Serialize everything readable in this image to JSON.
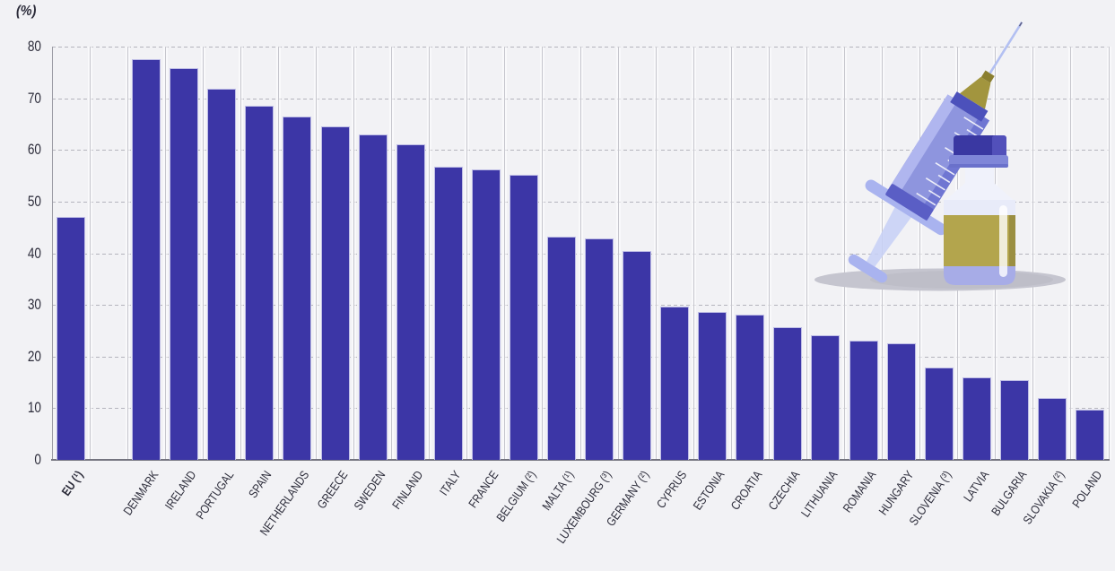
{
  "chart_data": {
    "type": "bar",
    "title": "",
    "unit_label": "(%)",
    "xlabel": "",
    "ylabel": "(%)",
    "ylim": [
      0,
      80
    ],
    "y_ticks": [
      0,
      10,
      20,
      30,
      40,
      50,
      60,
      70,
      80
    ],
    "grid": true,
    "legend_position": "none",
    "bar_color": "#3c36a6",
    "bar_border_color": "#bfbee6",
    "categories": [
      "EU (¹)",
      "DENMARK",
      "IRELAND",
      "PORTUGAL",
      "SPAIN",
      "NETHERLANDS",
      "GREECE",
      "SWEDEN",
      "FINLAND",
      "ITALY",
      "FRANCE",
      "BELGIUM (²)",
      "MALTA (¹)",
      "LUXEMBOURG (³)",
      "GERMANY (²)",
      "CYPRUS",
      "ESTONIA",
      "CROATIA",
      "CZECHIA",
      "LITHUANIA",
      "ROMANIA",
      "HUNGARY",
      "SLOVENIA (³)",
      "LATVIA",
      "BULGARIA",
      "SLOVAKIA (²)",
      "POLAND"
    ],
    "values": [
      47.1,
      77.5,
      75.9,
      71.9,
      68.5,
      66.5,
      64.6,
      63.0,
      61.0,
      56.7,
      56.2,
      55.2,
      43.2,
      42.9,
      40.5,
      29.6,
      28.7,
      28.1,
      25.6,
      24.2,
      23.0,
      22.5,
      17.8,
      16.0,
      15.4,
      11.9,
      9.7
    ],
    "first_bar_emphasized": true,
    "gap_after_first_bar": true
  },
  "illustration": {
    "name": "syringe-and-vaccine-vial",
    "syringe_barrel_color": "#8e95de",
    "syringe_plunger_color": "#a9b3ef",
    "needle_color": "#b3c0f2",
    "hub_color": "#a2953e",
    "vial_body_color": "#a7ace7",
    "vial_label_color": "#b3a54d",
    "vial_cap_color": "#3a38a2",
    "shadow_color": "#c5c5cf"
  }
}
